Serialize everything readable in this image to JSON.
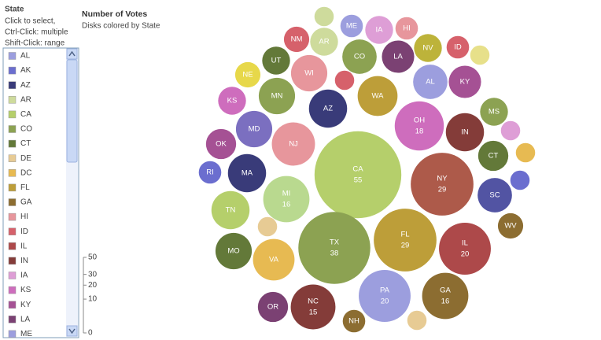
{
  "filter": {
    "title": "State",
    "instructions": [
      "Click to select,",
      "Ctrl-Click: multiple",
      "Shift-Click: range"
    ],
    "items": [
      "AL",
      "AK",
      "AZ",
      "AR",
      "CA",
      "CO",
      "CT",
      "DE",
      "DC",
      "FL",
      "GA",
      "HI",
      "ID",
      "IL",
      "IN",
      "IA",
      "KS",
      "KY",
      "LA",
      "ME"
    ],
    "colors": [
      "#9c9ede",
      "#6b6ecf",
      "#393b79",
      "#cedb9c",
      "#b5cf6b",
      "#8ca252",
      "#637939",
      "#e7cb94",
      "#e7ba52",
      "#bd9e39",
      "#8c6d31",
      "#e7969c",
      "#d6616b",
      "#ad494a",
      "#843c39",
      "#de9ed6",
      "#ce6dbd",
      "#a55194",
      "#7b4173",
      "#9c9ede"
    ]
  },
  "chart_data": {
    "type": "bubble",
    "title": "Number of Votes",
    "subtitle": "Disks colored by State",
    "categories": [
      "CA",
      "TX",
      "NY",
      "FL",
      "IL",
      "PA",
      "OH",
      "MI",
      "GA",
      "NC",
      "NJ",
      "VA",
      "WA",
      "AZ",
      "IN",
      "MA",
      "TN",
      "MN",
      "MO",
      "WI",
      "MD",
      "AL",
      "CO",
      "SC",
      "KY",
      "LA",
      "CT",
      "OK",
      "OR",
      "IA",
      "MS",
      "KS",
      "AR",
      "NV",
      "UT",
      "NM",
      "NE",
      "WV",
      "ID",
      "HI",
      "ME",
      "NH",
      "RI",
      null,
      null,
      null,
      null,
      null,
      null,
      null,
      null
    ],
    "values": [
      55,
      38,
      29,
      29,
      20,
      20,
      18,
      16,
      16,
      15,
      14,
      13,
      12,
      11,
      11,
      11,
      11,
      10,
      10,
      10,
      10,
      9,
      9,
      9,
      8,
      8,
      7,
      7,
      7,
      6,
      6,
      6,
      6,
      6,
      6,
      5,
      5,
      5,
      4,
      4,
      4,
      4,
      4,
      3,
      3,
      3,
      3,
      3,
      3,
      3,
      3
    ],
    "colors": [
      "#b5cf6b",
      "#8ca252",
      "#ad5a4a",
      "#bd9e39",
      "#ad494a",
      "#9c9ede",
      "#ce6dbd",
      "#b9d98f",
      "#8c6d31",
      "#843c39",
      "#e7969c",
      "#e7ba52",
      "#bd9e39",
      "#393b79",
      "#843c39",
      "#393b79",
      "#b5cf6b",
      "#8ca252",
      "#637939",
      "#e7969c",
      "#7b6fc0",
      "#9c9ede",
      "#8ca252",
      "#5254a3",
      "#a55194",
      "#7b4173",
      "#637939",
      "#a55194",
      "#7b4173",
      "#de9ed6",
      "#8ca252",
      "#ce6dbd",
      "#cedb9c",
      "#bdb33a",
      "#637939",
      "#d6616b",
      "#e7d84a",
      "#8c6d31",
      "#d6616b",
      "#e7969c",
      "#9c9ede",
      "#8c6d31",
      "#6b6ecf",
      "#cedb9c",
      "#d6616b",
      "#e7e08a",
      "#de9ed6",
      "#e7ba52",
      "#6b6ecf",
      "#e7cb94",
      "#e7cb94"
    ],
    "size_lim": [
      0,
      50
    ],
    "size_ticks": [
      50,
      30,
      20,
      10,
      0
    ]
  }
}
